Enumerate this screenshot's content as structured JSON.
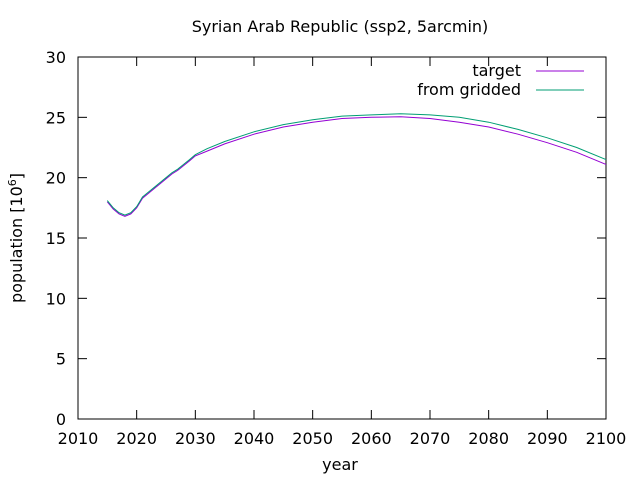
{
  "chart_data": {
    "type": "line",
    "title": "Syrian Arab Republic (ssp2, 5arcmin)",
    "xlabel": "year",
    "ylabel": "population [10",
    "ylabel_sup": "6",
    "ylabel_end": "]",
    "xlim": [
      2010,
      2100
    ],
    "ylim": [
      0,
      30
    ],
    "xticks": [
      2010,
      2020,
      2030,
      2040,
      2050,
      2060,
      2070,
      2080,
      2090,
      2100
    ],
    "yticks": [
      0,
      5,
      10,
      15,
      20,
      25,
      30
    ],
    "grid": false,
    "legend_position": "top-right",
    "series": [
      {
        "name": "target",
        "color": "#9400d3",
        "x": [
          2015,
          2016,
          2017,
          2018,
          2019,
          2020,
          2021,
          2022,
          2023,
          2024,
          2025,
          2026,
          2027,
          2028,
          2029,
          2030,
          2032,
          2035,
          2040,
          2045,
          2050,
          2055,
          2060,
          2065,
          2070,
          2075,
          2080,
          2085,
          2090,
          2095,
          2100
        ],
        "values": [
          18.0,
          17.4,
          17.0,
          16.8,
          17.0,
          17.5,
          18.3,
          18.7,
          19.1,
          19.5,
          19.9,
          20.3,
          20.6,
          21.0,
          21.4,
          21.8,
          22.2,
          22.8,
          23.6,
          24.2,
          24.6,
          24.9,
          25.0,
          25.05,
          24.9,
          24.6,
          24.2,
          23.6,
          22.9,
          22.1,
          21.1
        ]
      },
      {
        "name": "from gridded",
        "color": "#009e73",
        "x": [
          2015,
          2016,
          2017,
          2018,
          2019,
          2020,
          2021,
          2022,
          2023,
          2024,
          2025,
          2026,
          2027,
          2028,
          2029,
          2030,
          2032,
          2035,
          2040,
          2045,
          2050,
          2055,
          2060,
          2065,
          2070,
          2075,
          2080,
          2085,
          2090,
          2095,
          2100
        ],
        "values": [
          18.1,
          17.5,
          17.1,
          16.9,
          17.1,
          17.6,
          18.4,
          18.8,
          19.2,
          19.6,
          20.0,
          20.4,
          20.7,
          21.1,
          21.5,
          21.9,
          22.4,
          23.0,
          23.8,
          24.4,
          24.8,
          25.1,
          25.2,
          25.3,
          25.2,
          25.0,
          24.6,
          24.0,
          23.3,
          22.5,
          21.5
        ]
      }
    ]
  }
}
